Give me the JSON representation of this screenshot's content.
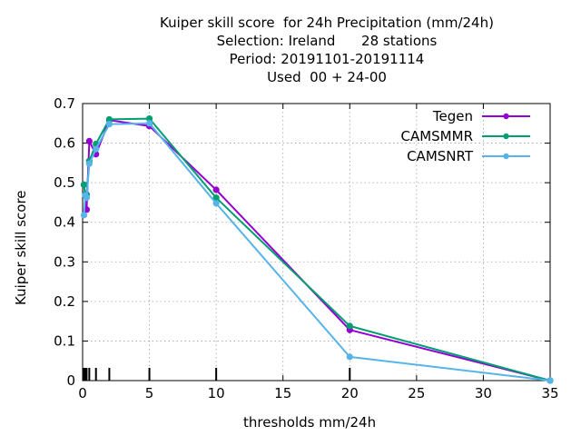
{
  "chart_data": {
    "type": "line",
    "title_lines": [
      "Kuiper skill score  for 24h Precipitation (mm/24h)",
      "Selection: Ireland      28 stations",
      "Period: 20191101-20191114",
      "Used  00 + 24-00"
    ],
    "xlabel": "thresholds mm/24h",
    "ylabel": "Kuiper skill score",
    "xlim": [
      0,
      35
    ],
    "ylim": [
      0,
      0.7
    ],
    "xticks": [
      0,
      5,
      10,
      15,
      20,
      25,
      30,
      35
    ],
    "yticks": [
      0,
      0.1,
      0.2,
      0.3,
      0.4,
      0.5,
      0.6,
      0.7
    ],
    "ytick_labels": [
      "0",
      "0.1",
      "0.2",
      "0.3",
      "0.4",
      "0.5",
      "0.6",
      "0.7"
    ],
    "grid": true,
    "legend_position": "top-right",
    "threshold_marks": [
      0.1,
      0.2,
      0.3,
      0.5,
      1,
      2,
      5,
      10,
      20
    ],
    "series": [
      {
        "name": "Tegen",
        "color": "#9400d3",
        "x": [
          0.1,
          0.2,
          0.3,
          0.5,
          1,
          2,
          5,
          10,
          20,
          35
        ],
        "y": [
          0.495,
          0.468,
          0.432,
          0.605,
          0.572,
          0.658,
          0.643,
          0.482,
          0.128,
          0.0
        ]
      },
      {
        "name": "CAMSMMR",
        "color": "#009e73",
        "x": [
          0.1,
          0.2,
          0.3,
          0.5,
          1,
          2,
          5,
          10,
          20,
          35
        ],
        "y": [
          0.495,
          0.47,
          0.47,
          0.555,
          0.598,
          0.66,
          0.662,
          0.462,
          0.138,
          0.0
        ]
      },
      {
        "name": "CAMSNRT",
        "color": "#56b4e9",
        "x": [
          0.1,
          0.2,
          0.3,
          0.5,
          1,
          2,
          5,
          10,
          20,
          35
        ],
        "y": [
          0.418,
          0.468,
          0.462,
          0.548,
          0.585,
          0.648,
          0.65,
          0.448,
          0.06,
          0.0
        ]
      }
    ]
  }
}
